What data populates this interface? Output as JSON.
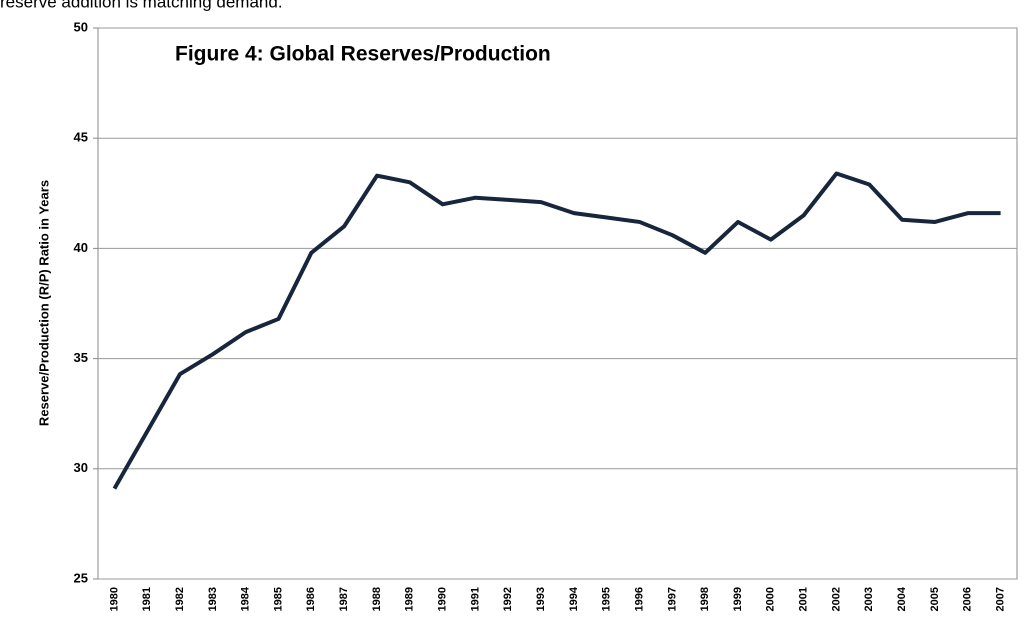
{
  "text_above": "reserve addition is matching demand.",
  "chart_data": {
    "type": "line",
    "title": "Figure 4: Global Reserves/Production",
    "y_label": "Reserve/Production (R/P) Ratio in Years",
    "categories": [
      "1980",
      "1981",
      "1982",
      "1983",
      "1984",
      "1985",
      "1986",
      "1987",
      "1988",
      "1989",
      "1990",
      "1991",
      "1992",
      "1993",
      "1994",
      "1995",
      "1996",
      "1997",
      "1998",
      "1999",
      "2000",
      "2001",
      "2002",
      "2003",
      "2004",
      "2005",
      "2006",
      "2007"
    ],
    "series": [
      {
        "name": "R/P ratio",
        "color": "#17263c",
        "values": [
          29.1,
          31.7,
          34.3,
          35.2,
          36.2,
          36.8,
          39.8,
          41.0,
          43.3,
          43.0,
          42.0,
          42.3,
          42.2,
          42.1,
          41.6,
          41.4,
          41.2,
          40.6,
          39.8,
          41.2,
          40.4,
          41.5,
          43.4,
          42.9,
          41.3,
          41.2,
          41.6,
          41.6
        ]
      }
    ],
    "ylim": [
      25,
      50
    ],
    "yticks": [
      25,
      30,
      35,
      40,
      45,
      50
    ],
    "grid": true
  }
}
